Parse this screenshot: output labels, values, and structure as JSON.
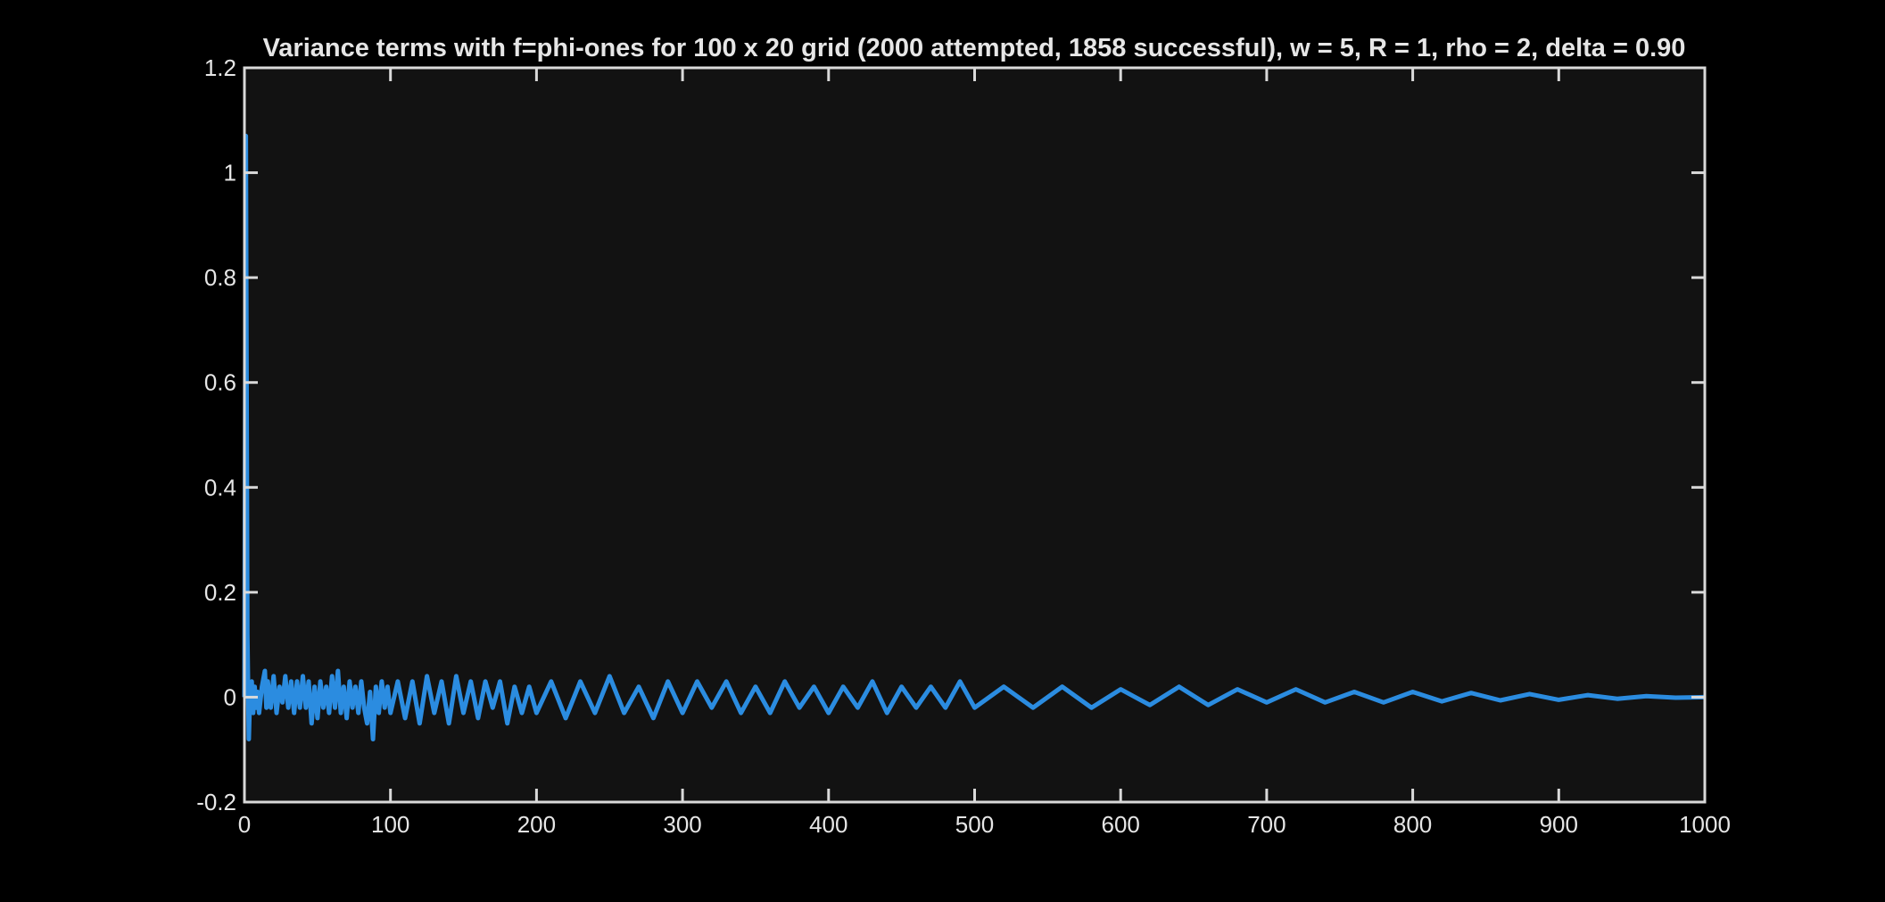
{
  "colors": {
    "page_background": "#000000",
    "plot_background": "#121212",
    "axis": "#d9d9d9",
    "text": "#e6e6e6",
    "series": "#2b8ce0"
  },
  "chart_data": {
    "type": "line",
    "title": "Variance terms with f=phi-ones for 100 x 20 grid (2000 attempted, 1858 successful), w = 5, R = 1, rho = 2, delta = 0.90",
    "xlabel": "",
    "ylabel": "",
    "xlim": [
      0,
      1000
    ],
    "ylim": [
      -0.2,
      1.2
    ],
    "grid": false,
    "x_ticks": [
      0,
      100,
      200,
      300,
      400,
      500,
      600,
      700,
      800,
      900,
      1000
    ],
    "x_tick_labels": [
      "0",
      "100",
      "200",
      "300",
      "400",
      "500",
      "600",
      "700",
      "800",
      "900",
      "1000"
    ],
    "y_ticks": [
      -0.2,
      0,
      0.2,
      0.4,
      0.6,
      0.8,
      1,
      1.2
    ],
    "y_tick_labels": [
      "-0.2",
      "0",
      "0.2",
      "0.4",
      "0.6",
      "0.8",
      "1",
      "1.2"
    ],
    "series": [
      {
        "color": "#2b8ce0",
        "x": [
          0,
          1,
          2,
          3,
          4,
          5,
          6,
          7,
          8,
          9,
          10,
          12,
          14,
          15,
          16,
          18,
          20,
          22,
          24,
          26,
          28,
          30,
          32,
          34,
          36,
          38,
          40,
          42,
          44,
          46,
          48,
          50,
          52,
          54,
          56,
          58,
          60,
          62,
          64,
          66,
          68,
          70,
          72,
          74,
          76,
          78,
          80,
          82,
          84,
          86,
          88,
          90,
          92,
          94,
          96,
          98,
          100,
          105,
          110,
          115,
          120,
          125,
          130,
          135,
          140,
          145,
          150,
          155,
          160,
          165,
          170,
          175,
          180,
          185,
          190,
          195,
          200,
          210,
          220,
          230,
          240,
          250,
          260,
          270,
          280,
          290,
          300,
          310,
          320,
          330,
          340,
          350,
          360,
          370,
          380,
          390,
          400,
          410,
          420,
          430,
          440,
          450,
          460,
          470,
          480,
          490,
          500,
          520,
          540,
          560,
          580,
          600,
          620,
          640,
          660,
          680,
          700,
          720,
          740,
          760,
          780,
          800,
          820,
          840,
          860,
          880,
          900,
          920,
          940,
          960,
          980,
          1000
        ],
        "y": [
          0.0,
          1.07,
          0.12,
          -0.08,
          0.02,
          0.03,
          -0.03,
          0.02,
          -0.02,
          0.01,
          -0.03,
          0.02,
          0.05,
          -0.02,
          0.03,
          -0.02,
          0.04,
          -0.03,
          0.02,
          -0.01,
          0.04,
          -0.02,
          0.03,
          -0.03,
          0.03,
          -0.02,
          0.04,
          -0.02,
          0.03,
          -0.05,
          0.02,
          -0.04,
          0.03,
          -0.02,
          0.02,
          -0.03,
          0.04,
          -0.02,
          0.05,
          -0.03,
          0.02,
          -0.04,
          0.03,
          -0.02,
          0.02,
          -0.03,
          0.03,
          -0.02,
          -0.05,
          0.01,
          -0.08,
          0.02,
          -0.03,
          0.03,
          -0.02,
          0.02,
          -0.03,
          0.03,
          -0.04,
          0.03,
          -0.05,
          0.04,
          -0.03,
          0.03,
          -0.05,
          0.04,
          -0.03,
          0.03,
          -0.04,
          0.03,
          -0.02,
          0.03,
          -0.05,
          0.02,
          -0.03,
          0.02,
          -0.03,
          0.03,
          -0.04,
          0.03,
          -0.03,
          0.04,
          -0.03,
          0.02,
          -0.04,
          0.03,
          -0.03,
          0.03,
          -0.02,
          0.03,
          -0.03,
          0.02,
          -0.03,
          0.03,
          -0.02,
          0.02,
          -0.03,
          0.02,
          -0.02,
          0.03,
          -0.03,
          0.02,
          -0.02,
          0.02,
          -0.02,
          0.03,
          -0.02,
          0.02,
          -0.02,
          0.02,
          -0.02,
          0.015,
          -0.015,
          0.02,
          -0.015,
          0.015,
          -0.01,
          0.015,
          -0.01,
          0.01,
          -0.01,
          0.01,
          -0.008,
          0.008,
          -0.006,
          0.006,
          -0.005,
          0.004,
          -0.003,
          0.002,
          -0.001,
          0.0
        ]
      }
    ]
  }
}
